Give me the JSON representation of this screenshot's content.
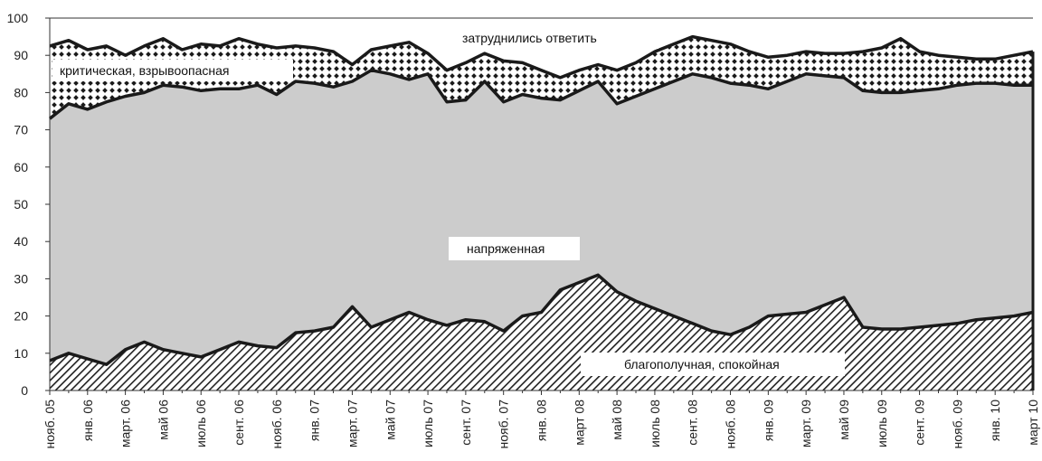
{
  "chart_data": {
    "type": "area",
    "stacked": true,
    "title": "",
    "xlabel": "",
    "ylabel": "",
    "ylim": [
      0,
      100
    ],
    "grid": false,
    "legend": "none",
    "yticks": [
      0,
      10,
      20,
      30,
      40,
      50,
      60,
      70,
      80,
      90,
      100
    ],
    "xtick_labels": [
      "нояб. 05",
      "янв. 06",
      "март. 06",
      "май 06",
      "июль 06",
      "сент. 06",
      "нояб. 06",
      "янв. 07",
      "март. 07",
      "май 07",
      "июль 07",
      "сент. 07",
      "нояб. 07",
      "янв. 08",
      "март 08",
      "май 08",
      "июль 08",
      "сент. 08",
      "нояб. 08",
      "янв. 09",
      "март. 09",
      "май 09",
      "июль 09",
      "сент. 09",
      "нояб. 09",
      "янв. 10",
      "март 10"
    ],
    "x_step": 0.5,
    "series": [
      {
        "name": "благополучная, спокойная",
        "values": [
          8,
          10,
          8.5,
          7,
          11,
          13,
          11,
          10,
          9,
          11,
          13,
          12,
          11.5,
          15.5,
          16,
          17,
          22.5,
          17,
          19,
          21,
          19,
          17.5,
          19,
          18.5,
          16,
          20,
          21,
          27,
          29,
          31,
          26.5,
          24,
          22,
          20,
          18,
          16,
          15,
          17,
          20,
          20.5,
          21,
          23,
          25,
          17,
          16.5,
          16.5,
          17,
          17.5,
          18,
          19,
          19.5,
          20,
          21
        ]
      },
      {
        "name": "напряженная",
        "values": [
          73,
          77,
          75.5,
          77.5,
          79,
          80,
          82,
          81.5,
          80.5,
          81,
          81,
          82,
          79.5,
          83,
          82.5,
          81.5,
          83,
          86,
          85,
          83.5,
          85,
          77.5,
          78,
          83,
          77.5,
          79.5,
          78.5,
          78,
          80.5,
          83,
          77,
          79,
          81,
          83,
          85,
          84,
          82.5,
          82,
          81,
          83,
          85,
          84.5,
          84,
          80.5,
          80,
          80,
          80.5,
          81,
          82,
          82.5,
          82.5,
          82,
          82
        ]
      },
      {
        "name": "критическая, взрывоопасная",
        "values": [
          92.5,
          94,
          91.5,
          92.5,
          90,
          92.5,
          94.5,
          91.5,
          93,
          92.5,
          94.5,
          93,
          92,
          92.5,
          92,
          91,
          87.5,
          91.5,
          92.5,
          93.5,
          90.5,
          86,
          88,
          90.5,
          88.5,
          88,
          86,
          84,
          86,
          87.5,
          86,
          88,
          91,
          93,
          95,
          94,
          93,
          91,
          89.5,
          90,
          91,
          90.5,
          90.5,
          91,
          92,
          94.5,
          91,
          90,
          89.5,
          89,
          89,
          90,
          91
        ]
      },
      {
        "name": "затруднились ответить",
        "values": [
          100,
          100,
          100,
          100,
          100,
          100,
          100,
          100,
          100,
          100,
          100,
          100,
          100,
          100,
          100,
          100,
          100,
          100,
          100,
          100,
          100,
          100,
          100,
          100,
          100,
          100,
          100,
          100,
          100,
          100,
          100,
          100,
          100,
          100,
          100,
          100,
          100,
          100,
          100,
          100,
          100,
          100,
          100,
          100,
          100,
          100,
          100,
          100,
          100,
          100,
          100,
          100,
          100
        ]
      }
    ],
    "series_colors": {
      "calm": "#ffffff",
      "tense": "#cccccc",
      "critical": "#ffffff",
      "undecided": "#ffffff",
      "line": "#1a1a1a",
      "pattern": "#222222"
    },
    "annotations": {
      "undecided": "затруднились ответить",
      "critical": "критическая, взрывоопасная",
      "tense": "напряженная",
      "calm": "благополучная, спокойная"
    }
  }
}
